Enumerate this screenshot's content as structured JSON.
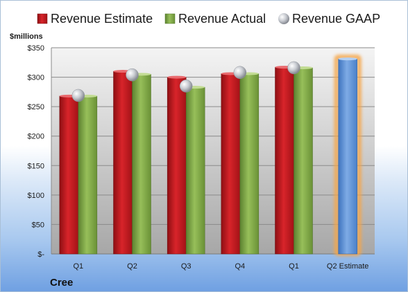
{
  "chart_data": {
    "type": "bar",
    "categories": [
      "Q1",
      "Q2",
      "Q3",
      "Q4",
      "Q1",
      "Q2 Estimate"
    ],
    "series": [
      {
        "name": "Revenue Estimate",
        "values": [
          268,
          310,
          300,
          306,
          317,
          null
        ],
        "color": "#c0151b",
        "marker": "bar"
      },
      {
        "name": "Revenue Actual",
        "values": [
          268,
          305,
          283,
          306,
          316,
          331
        ],
        "color": "#7ba33f",
        "marker": "bar",
        "forecast_index": 5,
        "forecast_color": "#5b93d8"
      },
      {
        "name": "Revenue GAAP",
        "values": [
          269,
          304,
          285,
          308,
          316,
          null
        ],
        "color": "#b8bcc4",
        "marker": "sphere"
      }
    ],
    "ylabel": "$millions",
    "ylim": [
      0,
      350
    ],
    "yticks": [
      0,
      50,
      100,
      150,
      200,
      250,
      300,
      350
    ],
    "ytick_labels": [
      "$-",
      "$50",
      "$100",
      "$150",
      "$200",
      "$250",
      "$300",
      "$350"
    ],
    "grid": true,
    "legend_position": "top",
    "company": "Cree"
  }
}
